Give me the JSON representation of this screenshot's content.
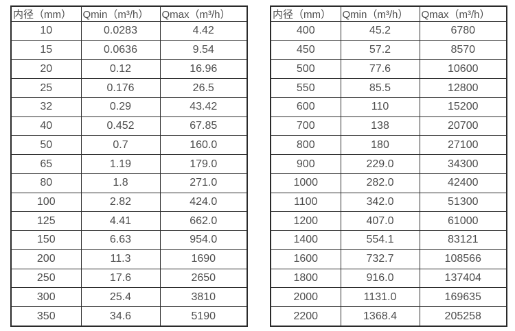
{
  "page": {
    "background_color": "#ffffff",
    "text_color": "#4d4d4d",
    "border_color": "#2b2b2b"
  },
  "tables": [
    {
      "headers": [
        "内径（mm）",
        "Qmin（m³/h）",
        "Qmax（m³/h）"
      ],
      "rows": [
        [
          "10",
          "0.0283",
          "4.42"
        ],
        [
          "15",
          "0.0636",
          "9.54"
        ],
        [
          "20",
          "0.12",
          "16.96"
        ],
        [
          "25",
          "0.176",
          "26.5"
        ],
        [
          "32",
          "0.29",
          "43.42"
        ],
        [
          "40",
          "0.452",
          "67.85"
        ],
        [
          "50",
          "0.7",
          "160.0"
        ],
        [
          "65",
          "1.19",
          "179.0"
        ],
        [
          "80",
          "1.8",
          "271.0"
        ],
        [
          "100",
          "2.82",
          "424.0"
        ],
        [
          "125",
          "4.41",
          "662.0"
        ],
        [
          "150",
          "6.63",
          "954.0"
        ],
        [
          "200",
          "11.3",
          "1690"
        ],
        [
          "250",
          "17.6",
          "2650"
        ],
        [
          "300",
          "25.4",
          "3810"
        ],
        [
          "350",
          "34.6",
          "5190"
        ]
      ]
    },
    {
      "headers": [
        "内径（mm）",
        "Qmin（m³/h）",
        "Qmax（m³/h）"
      ],
      "rows": [
        [
          "400",
          "45.2",
          "6780"
        ],
        [
          "450",
          "57.2",
          "8570"
        ],
        [
          "500",
          "77.6",
          "10600"
        ],
        [
          "550",
          "85.5",
          "12800"
        ],
        [
          "600",
          "110",
          "15200"
        ],
        [
          "700",
          "138",
          "20700"
        ],
        [
          "800",
          "180",
          "27100"
        ],
        [
          "900",
          "229.0",
          "34300"
        ],
        [
          "1000",
          "282.0",
          "42400"
        ],
        [
          "1100",
          "342.0",
          "51300"
        ],
        [
          "1200",
          "407.0",
          "61000"
        ],
        [
          "1400",
          "554.1",
          "83121"
        ],
        [
          "1600",
          "732.7",
          "108566"
        ],
        [
          "1800",
          "916.0",
          "137404"
        ],
        [
          "2000",
          "1131.0",
          "169635"
        ],
        [
          "2200",
          "1368.4",
          "205258"
        ]
      ]
    }
  ],
  "chart_data": [
    {
      "type": "table",
      "title": "",
      "columns": [
        "内径（mm）",
        "Qmin（m³/h）",
        "Qmax（m³/h）"
      ],
      "rows": [
        [
          10,
          0.0283,
          4.42
        ],
        [
          15,
          0.0636,
          9.54
        ],
        [
          20,
          0.12,
          16.96
        ],
        [
          25,
          0.176,
          26.5
        ],
        [
          32,
          0.29,
          43.42
        ],
        [
          40,
          0.452,
          67.85
        ],
        [
          50,
          0.7,
          160.0
        ],
        [
          65,
          1.19,
          179.0
        ],
        [
          80,
          1.8,
          271.0
        ],
        [
          100,
          2.82,
          424.0
        ],
        [
          125,
          4.41,
          662.0
        ],
        [
          150,
          6.63,
          954.0
        ],
        [
          200,
          11.3,
          1690
        ],
        [
          250,
          17.6,
          2650
        ],
        [
          300,
          25.4,
          3810
        ],
        [
          350,
          34.6,
          5190
        ]
      ]
    },
    {
      "type": "table",
      "title": "",
      "columns": [
        "内径（mm）",
        "Qmin（m³/h）",
        "Qmax（m³/h）"
      ],
      "rows": [
        [
          400,
          45.2,
          6780
        ],
        [
          450,
          57.2,
          8570
        ],
        [
          500,
          77.6,
          10600
        ],
        [
          550,
          85.5,
          12800
        ],
        [
          600,
          110,
          15200
        ],
        [
          700,
          138,
          20700
        ],
        [
          800,
          180,
          27100
        ],
        [
          900,
          229.0,
          34300
        ],
        [
          1000,
          282.0,
          42400
        ],
        [
          1100,
          342.0,
          51300
        ],
        [
          1200,
          407.0,
          61000
        ],
        [
          1400,
          554.1,
          83121
        ],
        [
          1600,
          732.7,
          108566
        ],
        [
          1800,
          916.0,
          137404
        ],
        [
          2000,
          1131.0,
          169635
        ],
        [
          2200,
          1368.4,
          205258
        ]
      ]
    }
  ]
}
